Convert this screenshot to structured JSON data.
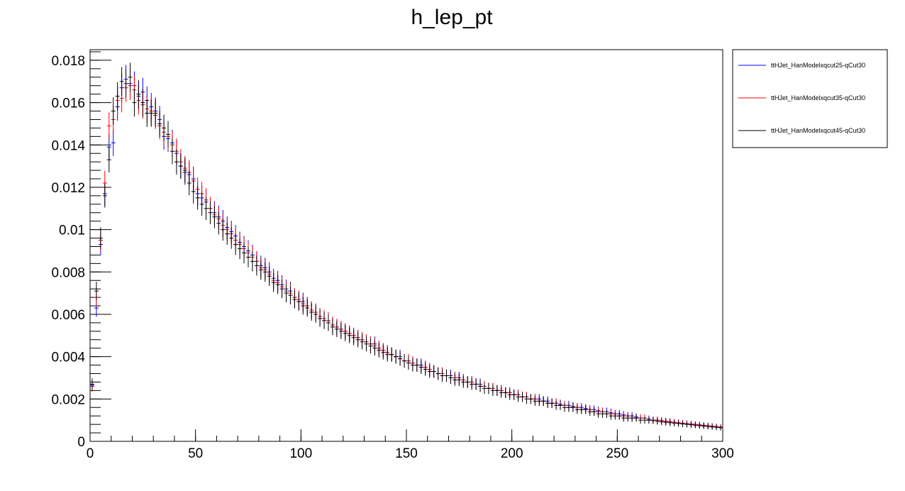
{
  "chart_data": {
    "type": "scatter",
    "title": "h_lep_pt",
    "xlabel": "",
    "ylabel": "",
    "xlim": [
      0,
      300
    ],
    "ylim": [
      0,
      0.0185
    ],
    "x_ticks": [
      0,
      50,
      100,
      150,
      200,
      250,
      300
    ],
    "x_tick_labels": [
      "0",
      "50",
      "100",
      "150",
      "200",
      "250",
      "300"
    ],
    "y_ticks": [
      0,
      0.002,
      0.004,
      0.006,
      0.008,
      0.01,
      0.012,
      0.014,
      0.016,
      0.018
    ],
    "y_tick_labels": [
      "0",
      "0.002",
      "0.004",
      "0.006",
      "0.008",
      "0.01",
      "0.012",
      "0.014",
      "0.016",
      "0.018"
    ],
    "grid": false,
    "legend_position": "right-top",
    "bin_width": 2,
    "bin_centers": [
      1,
      3,
      5,
      7,
      9,
      11,
      13,
      15,
      17,
      19,
      21,
      23,
      25,
      27,
      29,
      31,
      33,
      35,
      37,
      39,
      41,
      43,
      45,
      47,
      49,
      51,
      53,
      55,
      57,
      59,
      61,
      63,
      65,
      67,
      69,
      71,
      73,
      75,
      77,
      79,
      81,
      83,
      85,
      87,
      89,
      91,
      93,
      95,
      97,
      99,
      101,
      103,
      105,
      107,
      109,
      111,
      113,
      115,
      117,
      119,
      121,
      123,
      125,
      127,
      129,
      131,
      133,
      135,
      137,
      139,
      141,
      143,
      145,
      147,
      149,
      151,
      153,
      155,
      157,
      159,
      161,
      163,
      165,
      167,
      169,
      171,
      173,
      175,
      177,
      179,
      181,
      183,
      185,
      187,
      189,
      191,
      193,
      195,
      197,
      199,
      201,
      203,
      205,
      207,
      209,
      211,
      213,
      215,
      217,
      219,
      221,
      223,
      225,
      227,
      229,
      231,
      233,
      235,
      237,
      239,
      241,
      243,
      245,
      247,
      249,
      251,
      253,
      255,
      257,
      259,
      261,
      263,
      265,
      267,
      269,
      271,
      273,
      275,
      277,
      279,
      281,
      283,
      285,
      287,
      289,
      291,
      293,
      295,
      297,
      299
    ],
    "series": [
      {
        "name": "ttHJet_HanModelxqcut25-qCut30",
        "color": "#0000ff",
        "values": [
          0.00265,
          0.0063,
          0.0093,
          0.0117,
          0.0139,
          0.0141,
          0.0158,
          0.0167,
          0.0171,
          0.0169,
          0.0168,
          0.0163,
          0.0165,
          0.0161,
          0.0158,
          0.0156,
          0.0152,
          0.0144,
          0.0143,
          0.0141,
          0.0136,
          0.013,
          0.0127,
          0.0126,
          0.0124,
          0.0117,
          0.0115,
          0.0113,
          0.011,
          0.0108,
          0.0106,
          0.0104,
          0.0101,
          0.0099,
          0.0097,
          0.0094,
          0.0092,
          0.009,
          0.0088,
          0.0085,
          0.0083,
          0.0082,
          0.008,
          0.0077,
          0.0076,
          0.0074,
          0.0072,
          0.0071,
          0.0068,
          0.0066,
          0.0066,
          0.0064,
          0.0062,
          0.0061,
          0.0059,
          0.0057,
          0.0057,
          0.0055,
          0.0054,
          0.0053,
          0.0052,
          0.0051,
          0.005,
          0.0049,
          0.0048,
          0.0047,
          0.0046,
          0.0046,
          0.0044,
          0.0043,
          0.0042,
          0.0041,
          0.004,
          0.004,
          0.0038,
          0.0038,
          0.0037,
          0.0036,
          0.0036,
          0.0035,
          0.0034,
          0.0033,
          0.0032,
          0.0032,
          0.0031,
          0.0031,
          0.003,
          0.003,
          0.0029,
          0.0028,
          0.0028,
          0.0027,
          0.0027,
          0.0026,
          0.0025,
          0.0025,
          0.0024,
          0.0024,
          0.0023,
          0.0023,
          0.0022,
          0.0022,
          0.0021,
          0.0021,
          0.002,
          0.002,
          0.002,
          0.0019,
          0.0019,
          0.0018,
          0.0018,
          0.00175,
          0.0017,
          0.0017,
          0.00165,
          0.0016,
          0.0016,
          0.00155,
          0.0015,
          0.0015,
          0.00145,
          0.0014,
          0.0014,
          0.00135,
          0.0013,
          0.0013,
          0.00125,
          0.0012,
          0.0012,
          0.00115,
          0.0011,
          0.0011,
          0.00105,
          0.001,
          0.001,
          0.00098,
          0.00095,
          0.00093,
          0.0009,
          0.00088,
          0.00086,
          0.00084,
          0.00082,
          0.0008,
          0.00078,
          0.00076,
          0.00074,
          0.00072,
          0.0007,
          0.00068
        ]
      },
      {
        "name": "ttHJet_HanModelxqcut35-qCut30",
        "color": "#ff0000",
        "values": [
          0.0026,
          0.0068,
          0.0095,
          0.0122,
          0.0149,
          0.0152,
          0.0161,
          0.0162,
          0.0167,
          0.0168,
          0.0166,
          0.0161,
          0.0159,
          0.0157,
          0.0156,
          0.0154,
          0.0149,
          0.0146,
          0.0144,
          0.014,
          0.0137,
          0.0132,
          0.0129,
          0.0127,
          0.0123,
          0.0119,
          0.0117,
          0.0114,
          0.011,
          0.0107,
          0.0105,
          0.0102,
          0.01,
          0.0098,
          0.0095,
          0.0093,
          0.0091,
          0.0089,
          0.0087,
          0.0085,
          0.0082,
          0.0081,
          0.0079,
          0.0076,
          0.0075,
          0.0073,
          0.0071,
          0.007,
          0.0068,
          0.0067,
          0.0065,
          0.0064,
          0.0062,
          0.0061,
          0.0059,
          0.0058,
          0.0057,
          0.0055,
          0.0054,
          0.0053,
          0.0052,
          0.0051,
          0.005,
          0.0049,
          0.0048,
          0.0047,
          0.0046,
          0.0045,
          0.0044,
          0.0043,
          0.0042,
          0.0041,
          0.004,
          0.0039,
          0.0038,
          0.0038,
          0.0037,
          0.0036,
          0.0035,
          0.0035,
          0.0034,
          0.0033,
          0.0032,
          0.0032,
          0.0031,
          0.003,
          0.003,
          0.0029,
          0.0029,
          0.0028,
          0.0028,
          0.0027,
          0.0026,
          0.0026,
          0.0025,
          0.0025,
          0.0024,
          0.0024,
          0.0023,
          0.0023,
          0.0022,
          0.0022,
          0.0021,
          0.0021,
          0.002,
          0.002,
          0.0019,
          0.0019,
          0.0018,
          0.0018,
          0.0018,
          0.0017,
          0.0017,
          0.0016,
          0.0016,
          0.0016,
          0.0015,
          0.0015,
          0.0015,
          0.0014,
          0.0014,
          0.0014,
          0.0013,
          0.0013,
          0.0013,
          0.0012,
          0.0012,
          0.0012,
          0.0011,
          0.0011,
          0.0011,
          0.0011,
          0.001,
          0.001,
          0.001,
          0.00097,
          0.00094,
          0.00092,
          0.0009,
          0.00088,
          0.00085,
          0.00083,
          0.00081,
          0.00079,
          0.00077,
          0.00075,
          0.00073,
          0.00071,
          0.00069,
          0.00067
        ]
      },
      {
        "name": "ttHJet_HanModelxqcut45-qCut30",
        "color": "#000000",
        "values": [
          0.0027,
          0.0071,
          0.0096,
          0.0116,
          0.0133,
          0.0156,
          0.0163,
          0.017,
          0.0169,
          0.0172,
          0.016,
          0.0164,
          0.016,
          0.0155,
          0.0155,
          0.0155,
          0.015,
          0.0148,
          0.0145,
          0.0137,
          0.0132,
          0.013,
          0.0128,
          0.0122,
          0.0118,
          0.0115,
          0.0112,
          0.011,
          0.0108,
          0.0106,
          0.0103,
          0.01,
          0.0098,
          0.0096,
          0.0093,
          0.0091,
          0.0089,
          0.0087,
          0.0085,
          0.0083,
          0.0081,
          0.008,
          0.0078,
          0.0075,
          0.0074,
          0.0072,
          0.007,
          0.0069,
          0.0067,
          0.0066,
          0.0064,
          0.0063,
          0.0061,
          0.006,
          0.0058,
          0.0057,
          0.0056,
          0.0054,
          0.0053,
          0.0052,
          0.0051,
          0.005,
          0.0049,
          0.0048,
          0.0047,
          0.0046,
          0.0045,
          0.0044,
          0.0043,
          0.0042,
          0.0041,
          0.0041,
          0.004,
          0.0039,
          0.0038,
          0.0037,
          0.0036,
          0.0036,
          0.0035,
          0.0034,
          0.0033,
          0.0033,
          0.0032,
          0.0031,
          0.0031,
          0.003,
          0.0029,
          0.0029,
          0.0028,
          0.0028,
          0.0027,
          0.0027,
          0.0026,
          0.0025,
          0.0025,
          0.0024,
          0.0024,
          0.0023,
          0.0023,
          0.0022,
          0.0022,
          0.0021,
          0.0021,
          0.002,
          0.002,
          0.0019,
          0.0019,
          0.0019,
          0.0018,
          0.0018,
          0.0017,
          0.0017,
          0.0016,
          0.0016,
          0.0016,
          0.0015,
          0.0015,
          0.0015,
          0.0014,
          0.0014,
          0.0013,
          0.0013,
          0.0013,
          0.0012,
          0.0012,
          0.0012,
          0.0011,
          0.0011,
          0.0011,
          0.0011,
          0.001,
          0.001,
          0.001,
          0.00098,
          0.00095,
          0.00092,
          0.0009,
          0.00088,
          0.00086,
          0.00084,
          0.00082,
          0.0008,
          0.00078,
          0.00076,
          0.00074,
          0.00072,
          0.0007,
          0.00068,
          0.00066,
          0.00064
        ]
      }
    ]
  }
}
